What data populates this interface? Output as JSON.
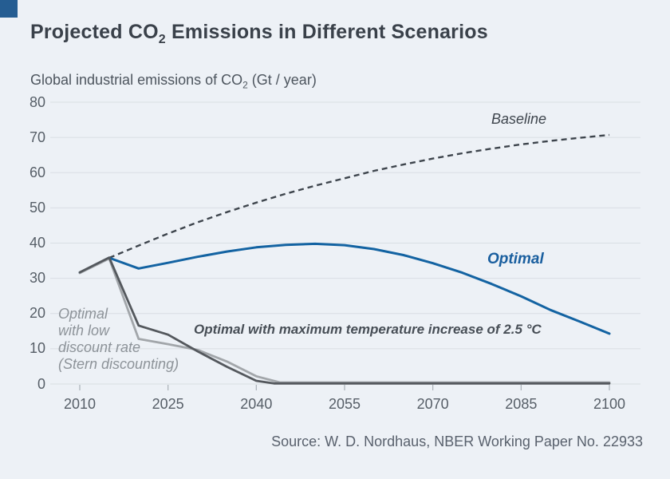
{
  "header": {
    "title_pre": "Projected CO",
    "title_sub": "2",
    "title_post": " Emissions in Different Scenarios",
    "subtitle_pre": "Global industrial emissions of CO",
    "subtitle_sub": "2",
    "subtitle_post": " (Gt / year)"
  },
  "colors": {
    "background": "#edf1f6",
    "brand_square": "#255d92",
    "grid": "#d9dee3",
    "tick": "#a9b0b7",
    "baseline": "#3e454d",
    "optimal_blue": "#1363a2",
    "maxtemp_gray": "#54585d",
    "stern_gray": "#a2a6aa"
  },
  "annotations": {
    "baseline_label": "Baseline",
    "optimal_label": "Optimal",
    "maxtemp_label": "Optimal with maximum temperature increase of 2.5 °C",
    "stern_label": "Optimal\nwith low\ndiscount rate\n(Stern discounting)"
  },
  "source": {
    "text": "Source: W. D. Nordhaus, NBER Working Paper No. 22933"
  },
  "chart_data": {
    "type": "line",
    "title": "Projected CO₂ Emissions in Different Scenarios",
    "ylabel": "Global industrial emissions of CO₂ (Gt / year)",
    "xlabel": "",
    "xlim": [
      2010,
      2100
    ],
    "ylim": [
      0,
      80
    ],
    "yticks": [
      80,
      70,
      60,
      50,
      40,
      30,
      20,
      10,
      0
    ],
    "xticks": [
      2010,
      2025,
      2040,
      2055,
      2070,
      2085,
      2100
    ],
    "grid": true,
    "legend_position": "inline-annotations",
    "series": [
      {
        "name": "Baseline",
        "color": "#3e454d",
        "dash": true,
        "stroke_width": 2.4,
        "points": [
          [
            2015,
            35.8
          ],
          [
            2020,
            39.3
          ],
          [
            2025,
            42.7
          ],
          [
            2030,
            45.9
          ],
          [
            2035,
            48.8
          ],
          [
            2040,
            51.5
          ],
          [
            2045,
            54.0
          ],
          [
            2050,
            56.3
          ],
          [
            2055,
            58.4
          ],
          [
            2060,
            60.5
          ],
          [
            2065,
            62.3
          ],
          [
            2070,
            64.0
          ],
          [
            2075,
            65.5
          ],
          [
            2080,
            66.8
          ],
          [
            2085,
            68.0
          ],
          [
            2090,
            69.0
          ],
          [
            2095,
            69.9
          ],
          [
            2100,
            70.7
          ]
        ]
      },
      {
        "name": "Optimal",
        "color": "#1363a2",
        "dash": false,
        "stroke_width": 3,
        "points": [
          [
            2010,
            31.6
          ],
          [
            2015,
            35.8
          ],
          [
            2020,
            32.8
          ],
          [
            2025,
            34.4
          ],
          [
            2030,
            36.1
          ],
          [
            2035,
            37.6
          ],
          [
            2040,
            38.8
          ],
          [
            2045,
            39.5
          ],
          [
            2050,
            39.8
          ],
          [
            2055,
            39.4
          ],
          [
            2060,
            38.3
          ],
          [
            2065,
            36.6
          ],
          [
            2070,
            34.3
          ],
          [
            2075,
            31.6
          ],
          [
            2080,
            28.4
          ],
          [
            2085,
            24.9
          ],
          [
            2090,
            21.0
          ],
          [
            2095,
            17.7
          ],
          [
            2100,
            14.3
          ]
        ]
      },
      {
        "name": "Optimal with low discount rate (Stern discounting)",
        "color": "#a2a6aa",
        "dash": false,
        "stroke_width": 2.8,
        "points": [
          [
            2010,
            31.5
          ],
          [
            2015,
            35.6
          ],
          [
            2020,
            12.8
          ],
          [
            2025,
            11.3
          ],
          [
            2030,
            9.7
          ],
          [
            2035,
            6.4
          ],
          [
            2040,
            2.2
          ],
          [
            2044,
            0.45
          ],
          [
            2100,
            0.45
          ]
        ]
      },
      {
        "name": "Optimal with maximum temperature increase of 2.5 °C",
        "color": "#54585d",
        "dash": false,
        "stroke_width": 2.8,
        "points": [
          [
            2010,
            31.7
          ],
          [
            2015,
            35.9
          ],
          [
            2020,
            16.6
          ],
          [
            2025,
            14.0
          ],
          [
            2030,
            9.3
          ],
          [
            2035,
            4.9
          ],
          [
            2040,
            0.9
          ],
          [
            2043,
            0.15
          ],
          [
            2100,
            0.15
          ]
        ]
      }
    ]
  }
}
